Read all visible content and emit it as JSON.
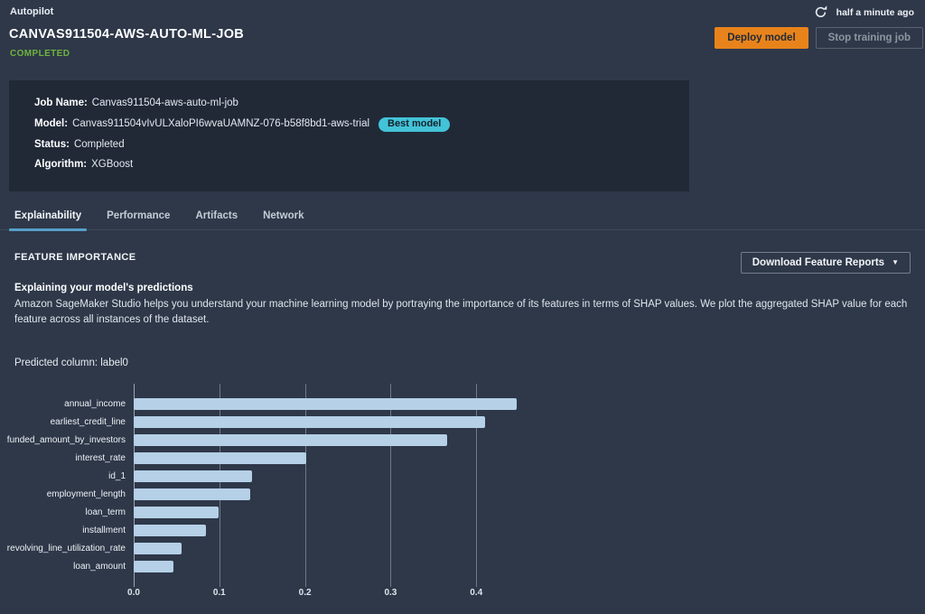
{
  "header": {
    "breadcrumb": "Autopilot",
    "title": "CANVAS911504-AWS-AUTO-ML-JOB",
    "status": "COMPLETED",
    "refreshed": "half a minute ago",
    "deploy_label": "Deploy model",
    "stop_label": "Stop training job"
  },
  "summary": {
    "rows": [
      {
        "label": "Job Name:",
        "value": "Canvas911504-aws-auto-ml-job"
      },
      {
        "label": "Model:",
        "value": "Canvas911504vIvULXaloPI6wvaUAMNZ-076-b58f8bd1-aws-trial",
        "badge": "Best model"
      },
      {
        "label": "Status:",
        "value": "Completed"
      },
      {
        "label": "Algorithm:",
        "value": "XGBoost"
      }
    ]
  },
  "tabs": [
    {
      "label": "Explainability",
      "active": true
    },
    {
      "label": "Performance",
      "active": false
    },
    {
      "label": "Artifacts",
      "active": false
    },
    {
      "label": "Network",
      "active": false
    }
  ],
  "feature_importance": {
    "heading": "FEATURE IMPORTANCE",
    "download_label": "Download Feature Reports",
    "caret": "▼",
    "subheading": "Explaining your model's predictions",
    "description": "Amazon SageMaker Studio helps you understand your machine learning model by portraying the importance of its features in terms of SHAP values. We plot the aggregated SHAP value for each feature across all instances of the dataset.",
    "predicted_column_text": "Predicted column: label0"
  },
  "chart_data": {
    "type": "bar",
    "orientation": "horizontal",
    "title": "",
    "categories": [
      "annual_income",
      "earliest_credit_line",
      "funded_amount_by_investors",
      "interest_rate",
      "id_1",
      "employment_length",
      "loan_term",
      "installment",
      "revolving_line_utilization_rate",
      "loan_amount"
    ],
    "values": [
      0.447,
      0.41,
      0.366,
      0.201,
      0.138,
      0.136,
      0.099,
      0.084,
      0.056,
      0.046
    ],
    "xlabel": "",
    "ylabel": "",
    "xlim": [
      0,
      0.4536
    ],
    "xticks": [
      "0.0",
      "0.1",
      "0.2",
      "0.3",
      "0.4"
    ],
    "xtick_values": [
      0,
      0.1,
      0.2,
      0.3,
      0.4
    ],
    "grid": true,
    "legend": false,
    "bar_color": "#b5d0e7"
  },
  "colors": {
    "page-bg": "#2e3849",
    "panel-bg": "#212937",
    "green": "#70b43e",
    "orange": "#e8831c",
    "cyan": "#43c3d8",
    "tabline": "#579fc8",
    "bar": "#b5d0e7",
    "gridline": "#6f7988"
  }
}
